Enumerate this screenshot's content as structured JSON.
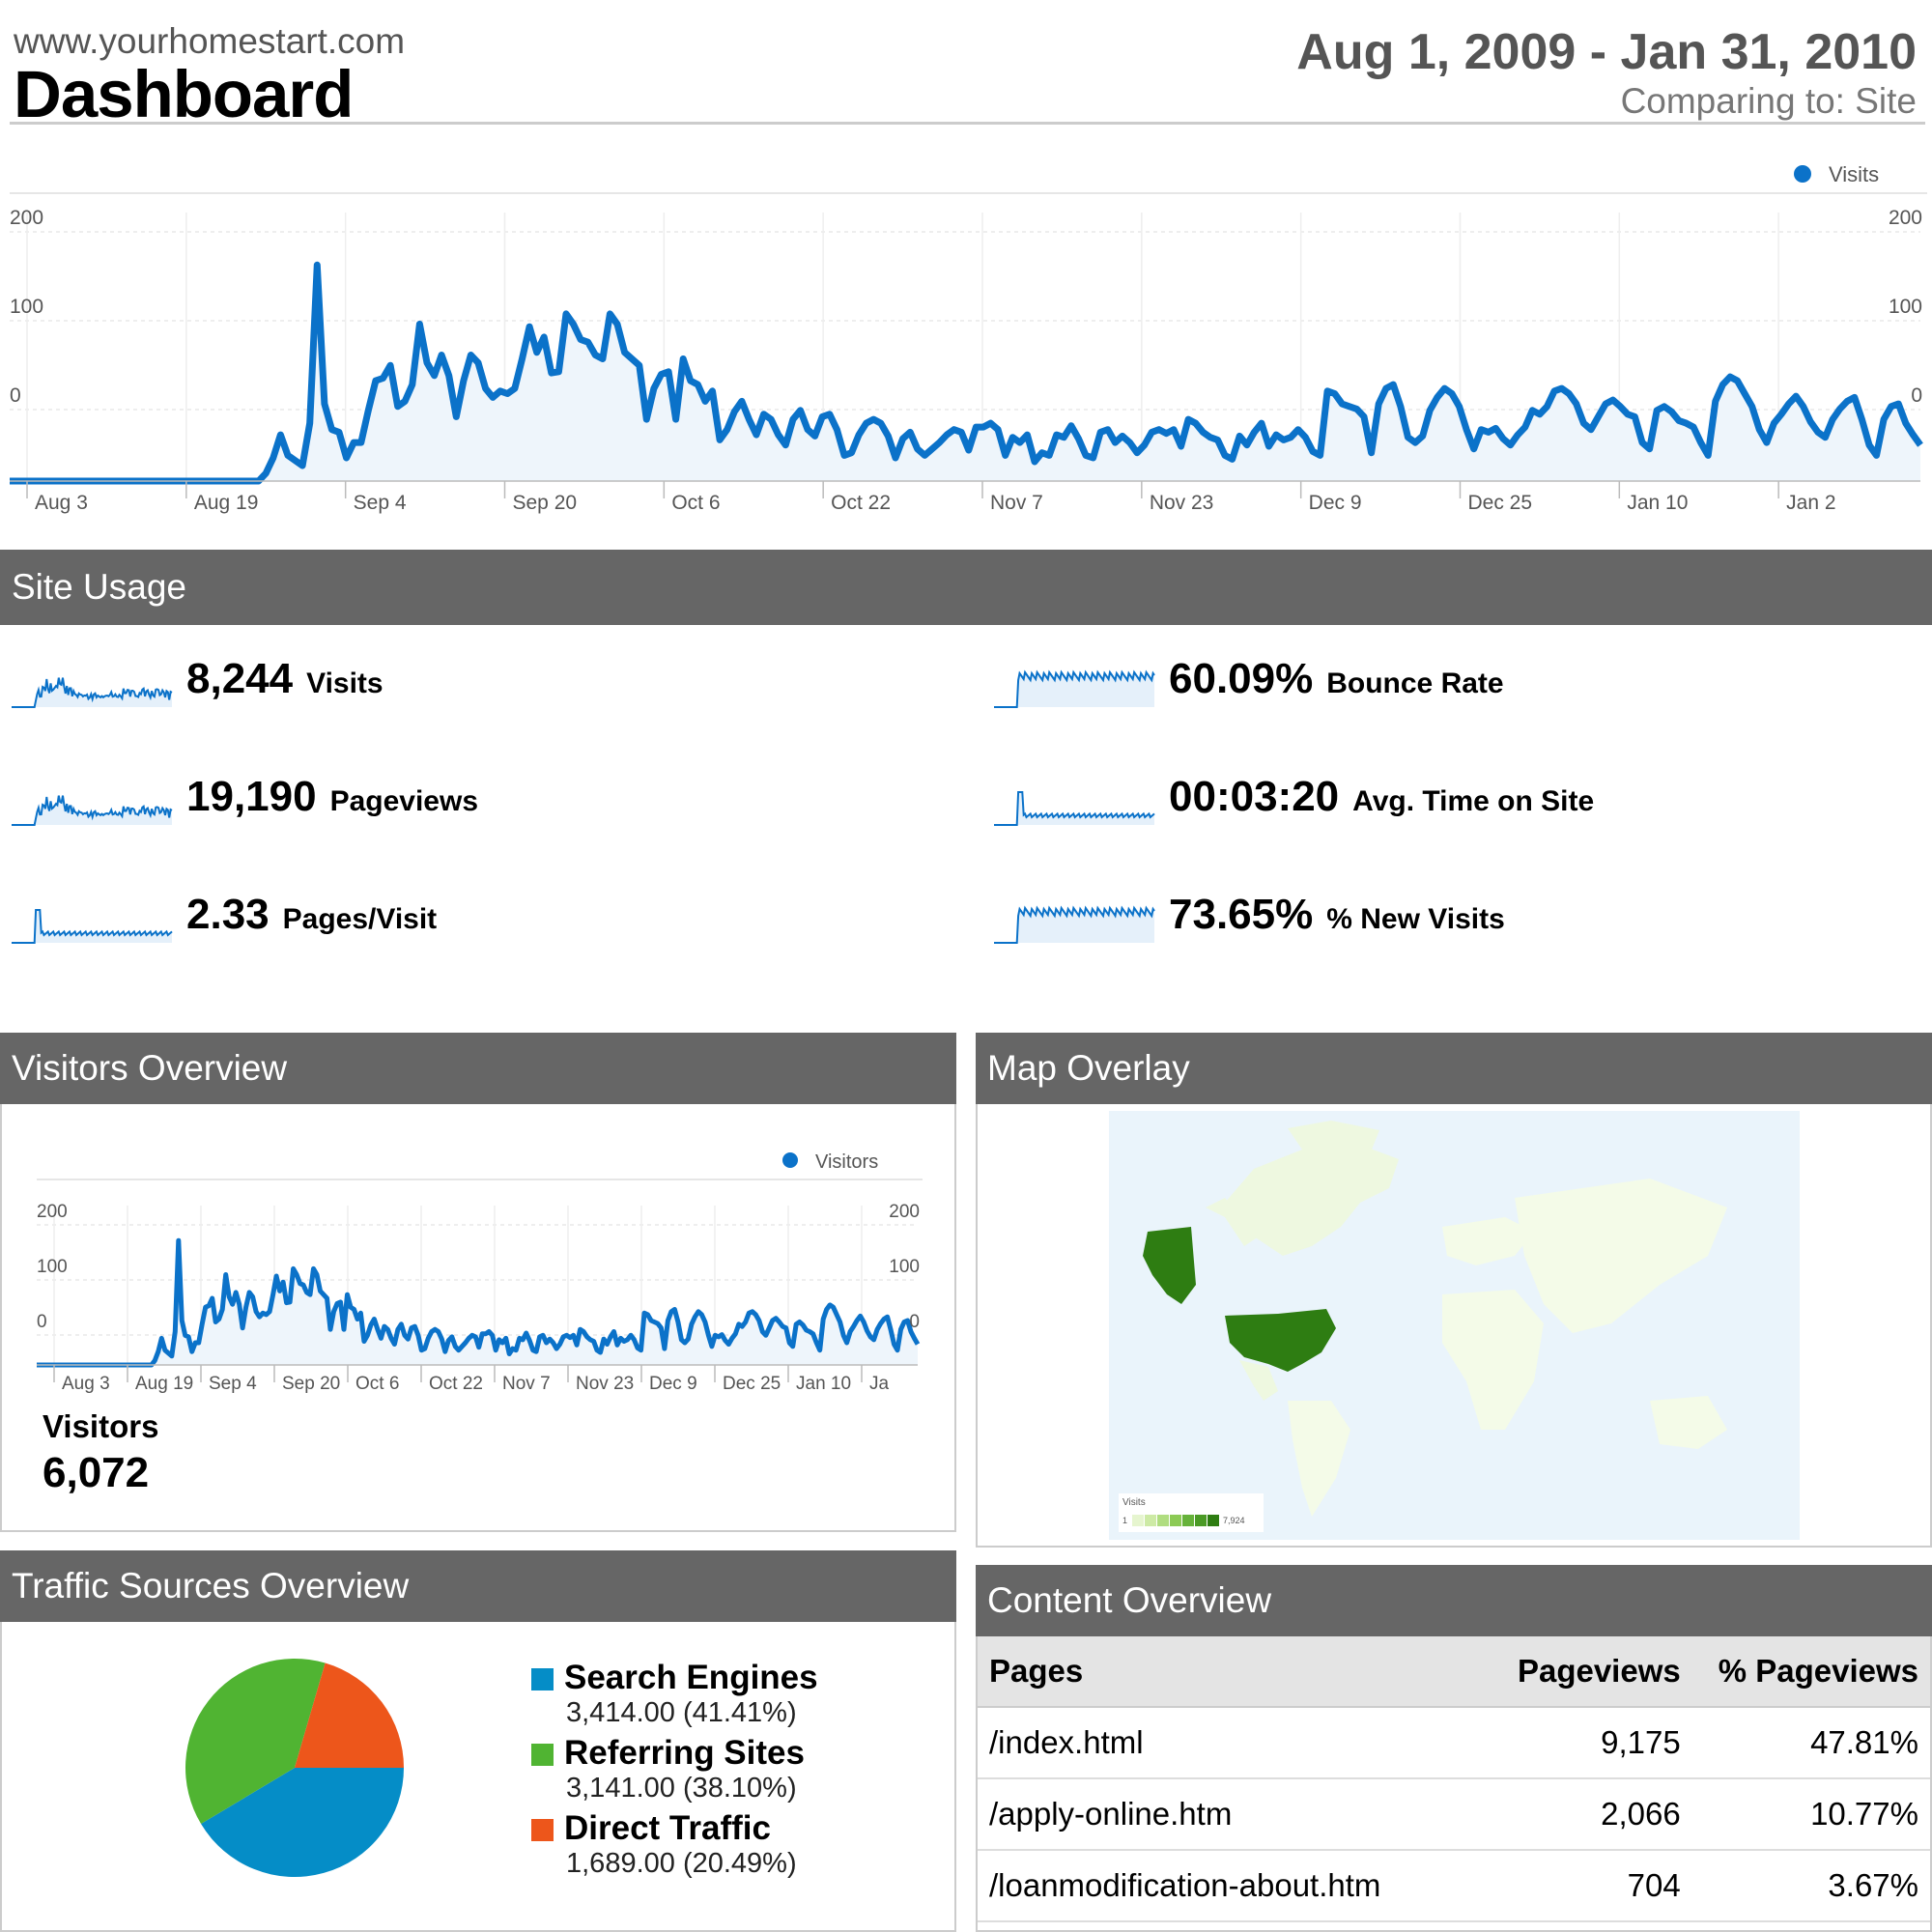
{
  "header": {
    "site_url": "www.yourhomestart.com",
    "title": "Dashboard",
    "date_range": "Aug 1, 2009 - Jan 31, 2010",
    "comparing": "Comparing to: Site"
  },
  "main_chart": {
    "legend": "Visits",
    "y_ticks": [
      "200",
      "100",
      "0"
    ],
    "x_ticks": [
      "Aug 3",
      "Aug 19",
      "Sep 4",
      "Sep 20",
      "Oct 6",
      "Oct 22",
      "Nov 7",
      "Nov 23",
      "Dec 9",
      "Dec 25",
      "Jan 10",
      "Jan 2"
    ]
  },
  "chart_data": [
    {
      "type": "area",
      "series": [
        {
          "name": "Visits",
          "values": [
            0,
            0,
            0,
            0,
            0,
            0,
            0,
            0,
            0,
            0,
            0,
            0,
            0,
            0,
            0,
            0,
            0,
            0,
            0,
            0,
            0,
            0,
            0,
            0,
            0,
            0,
            0,
            0,
            0,
            0,
            0,
            0,
            0,
            0,
            0,
            6,
            18,
            36,
            20,
            16,
            12,
            45,
            168,
            60,
            40,
            38,
            18,
            30,
            30,
            55,
            78,
            80,
            90,
            58,
            62,
            75,
            122,
            92,
            82,
            98,
            82,
            50,
            78,
            98,
            92,
            72,
            65,
            70,
            68,
            72,
            95,
            120,
            100,
            112,
            84,
            85,
            130,
            122,
            110,
            108,
            98,
            95,
            130,
            122,
            100,
            95,
            90,
            48,
            72,
            83,
            85,
            48,
            95,
            78,
            75,
            62,
            70,
            32,
            40,
            54,
            62,
            48,
            36,
            52,
            48,
            36,
            28,
            48,
            55,
            40,
            35,
            50,
            52,
            40,
            20,
            22,
            36,
            45,
            48,
            45,
            35,
            18,
            33,
            38,
            25,
            20,
            25,
            30,
            36,
            40,
            38,
            24,
            42,
            42,
            45,
            40,
            20,
            34,
            30,
            36,
            15,
            22,
            20,
            36,
            34,
            43,
            33,
            20,
            18,
            38,
            40,
            30,
            35,
            30,
            22,
            28,
            38,
            40,
            37,
            40,
            27,
            48,
            45,
            38,
            34,
            32,
            20,
            17,
            35,
            28,
            38,
            45,
            27,
            36,
            32,
            34,
            40,
            34,
            23,
            20,
            70,
            68,
            60,
            58,
            56,
            50,
            22,
            60,
            72,
            75,
            58,
            34,
            30,
            35,
            55,
            65,
            72,
            68,
            58,
            40,
            25,
            40,
            38,
            41,
            33,
            28,
            36,
            42,
            55,
            52,
            58,
            70,
            72,
            68,
            60,
            45,
            40,
            50,
            60,
            63,
            58,
            52,
            50,
            30,
            25,
            55,
            58,
            54,
            47,
            45,
            42,
            30,
            20,
            62,
            75,
            81,
            78,
            68,
            58,
            40,
            30,
            45,
            52,
            60,
            66,
            58,
            46,
            38,
            34,
            48,
            56,
            62,
            65,
            48,
            28,
            20,
            48,
            58,
            60,
            45,
            36,
            28
          ]
        }
      ],
      "x_ticks": [
        "Aug 3",
        "Aug 19",
        "Sep 4",
        "Sep 20",
        "Oct 6",
        "Oct 22",
        "Nov 7",
        "Nov 23",
        "Dec 9",
        "Dec 25",
        "Jan 10",
        "Jan 2"
      ],
      "y_ticks": [
        "200",
        "100",
        "0"
      ],
      "legend_position": "top-right"
    },
    {
      "type": "pie",
      "categories": [
        "Search Engines",
        "Referring Sites",
        "Direct Traffic"
      ],
      "values": [
        3414.0,
        3141.0,
        1689.0
      ],
      "colors": [
        "#058dc7",
        "#50b432",
        "#ed561b"
      ]
    }
  ],
  "site_usage": {
    "title": "Site Usage",
    "metrics": [
      {
        "value": "8,244",
        "label": "Visits"
      },
      {
        "value": "19,190",
        "label": "Pageviews"
      },
      {
        "value": "2.33",
        "label": "Pages/Visit"
      },
      {
        "value": "60.09%",
        "label": "Bounce Rate"
      },
      {
        "value": "00:03:20",
        "label": "Avg. Time on Site"
      },
      {
        "value": "73.65%",
        "label": "% New Visits"
      }
    ]
  },
  "visitors": {
    "title": "Visitors Overview",
    "legend": "Visitors",
    "y_ticks": [
      "200",
      "100",
      "0"
    ],
    "x_ticks": [
      "Aug 3",
      "Aug 19",
      "Sep 4",
      "Sep 20",
      "Oct 6",
      "Oct 22",
      "Nov 7",
      "Nov 23",
      "Dec 9",
      "Dec 25",
      "Jan 10",
      "Ja"
    ],
    "label": "Visitors",
    "total": "6,072"
  },
  "map": {
    "title": "Map Overlay",
    "legend_title": "Visits",
    "legend_min": "1",
    "legend_max": "7,924"
  },
  "traffic": {
    "title": "Traffic Sources Overview",
    "items": [
      {
        "name": "Search Engines",
        "value": "3,414.00 (41.41%)"
      },
      {
        "name": "Referring Sites",
        "value": "3,141.00 (38.10%)"
      },
      {
        "name": "Direct Traffic",
        "value": "1,689.00 (20.49%)"
      }
    ]
  },
  "content": {
    "title": "Content Overview",
    "columns": [
      "Pages",
      "Pageviews",
      "% Pageviews"
    ],
    "rows": [
      [
        "/index.html",
        "9,175",
        "47.81%"
      ],
      [
        "/apply-online.htm",
        "2,066",
        "10.77%"
      ],
      [
        "/loanmodification-about.htm",
        "704",
        "3.67%"
      ]
    ]
  },
  "colors": {
    "accent": "#0b72c9",
    "panel_header": "#666666"
  }
}
